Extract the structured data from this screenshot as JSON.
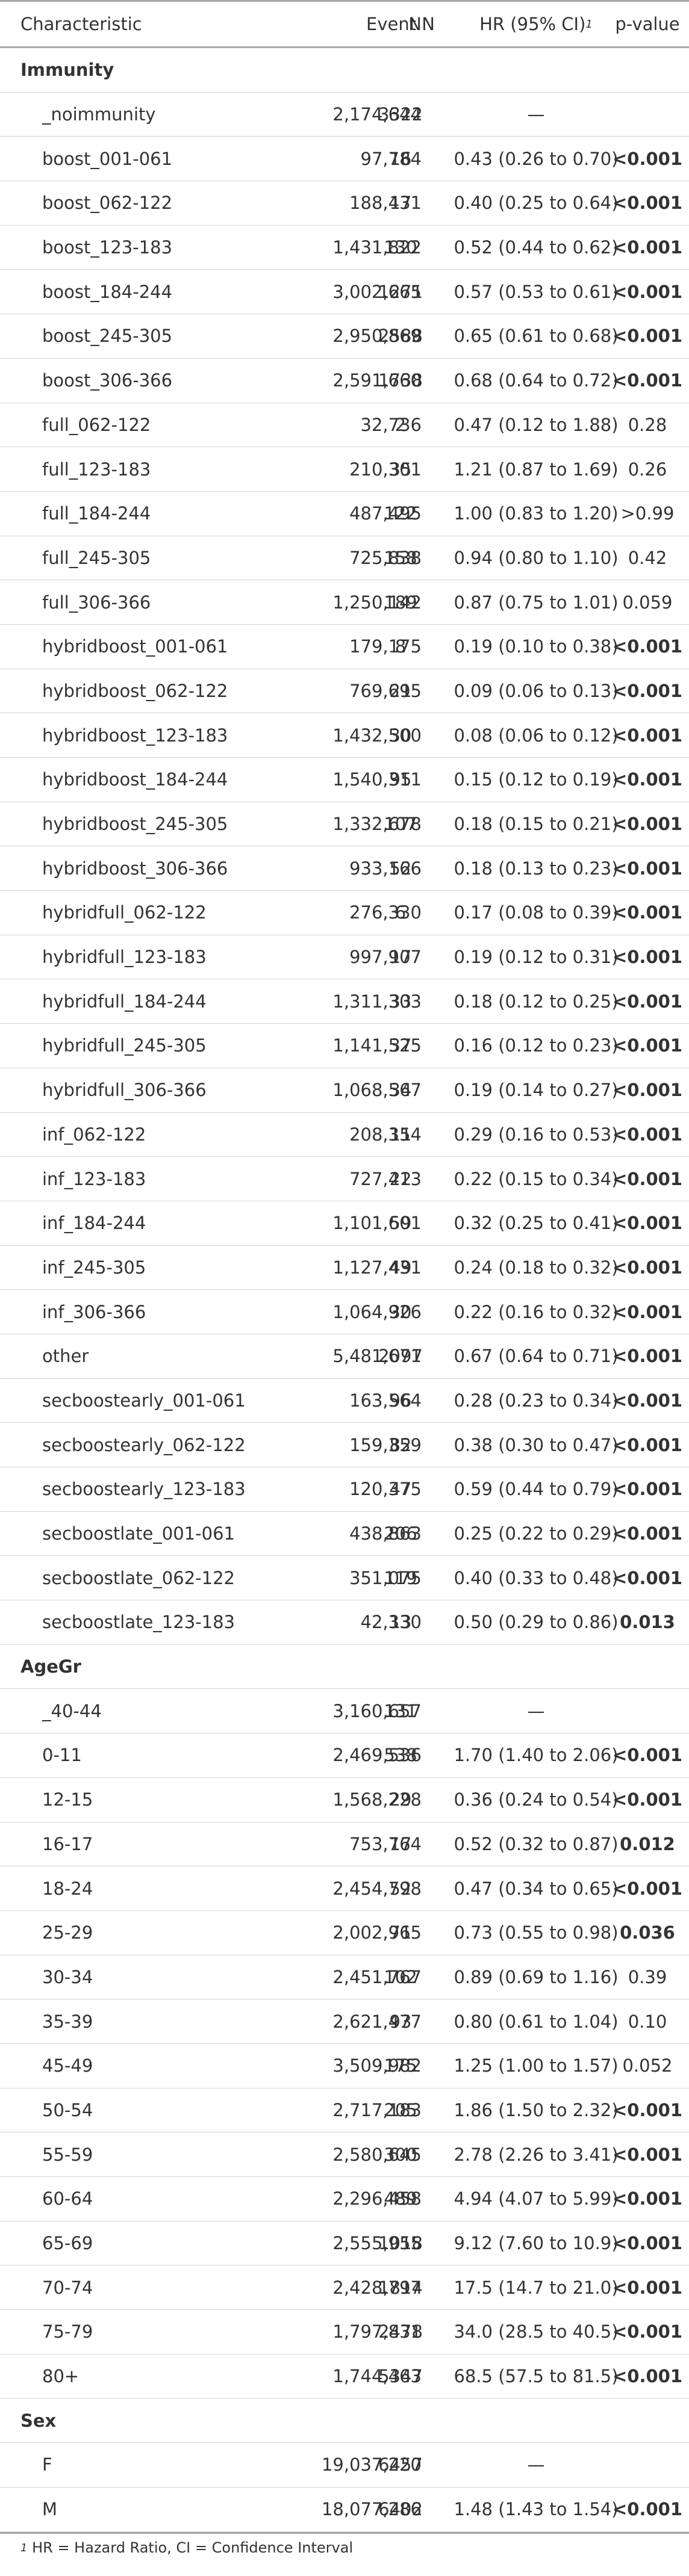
{
  "header": {
    "characteristic": "Characteristic",
    "n": "N",
    "event_n": "Event N",
    "hr": "HR (95% CI)",
    "hr_sup": "1",
    "pvalue": "p-value"
  },
  "groups": [
    {
      "label": "Immunity",
      "rows": [
        {
          "name": "_noimmunity",
          "n": "2,174,644",
          "events": "3322",
          "hr": "—",
          "p": "",
          "p_bold": false
        },
        {
          "name": "boost_001-061",
          "n": "97,784",
          "events": "16",
          "hr": "0.43 (0.26 to 0.70)",
          "p": "<0.001",
          "p_bold": true
        },
        {
          "name": "boost_062-122",
          "n": "188,431",
          "events": "17",
          "hr": "0.40 (0.25 to 0.64)",
          "p": "<0.001",
          "p_bold": true
        },
        {
          "name": "boost_123-183",
          "n": "1,431,822",
          "events": "130",
          "hr": "0.52 (0.44 to 0.62)",
          "p": "<0.001",
          "p_bold": true
        },
        {
          "name": "boost_184-244",
          "n": "3,002,665",
          "events": "1271",
          "hr": "0.57 (0.53 to 0.61)",
          "p": "<0.001",
          "p_bold": true
        },
        {
          "name": "boost_245-305",
          "n": "2,950,869",
          "events": "2588",
          "hr": "0.65 (0.61 to 0.68)",
          "p": "<0.001",
          "p_bold": true
        },
        {
          "name": "boost_306-366",
          "n": "2,591,660",
          "events": "1738",
          "hr": "0.68 (0.64 to 0.72)",
          "p": "<0.001",
          "p_bold": true
        },
        {
          "name": "full_062-122",
          "n": "32,736",
          "events": "2",
          "hr": "0.47 (0.12 to 1.88)",
          "p": "0.28",
          "p_bold": false
        },
        {
          "name": "full_123-183",
          "n": "210,301",
          "events": "35",
          "hr": "1.21 (0.87 to 1.69)",
          "p": "0.26",
          "p_bold": false
        },
        {
          "name": "full_184-244",
          "n": "487,495",
          "events": "122",
          "hr": "1.00 (0.83 to 1.20)",
          "p": ">0.99",
          "p_bold": false
        },
        {
          "name": "full_245-305",
          "n": "725,838",
          "events": "158",
          "hr": "0.94 (0.80 to 1.10)",
          "p": "0.42",
          "p_bold": false
        },
        {
          "name": "full_306-366",
          "n": "1,250,142",
          "events": "189",
          "hr": "0.87 (0.75 to 1.01)",
          "p": "0.059",
          "p_bold": false
        },
        {
          "name": "hybridboost_001-061",
          "n": "179,175",
          "events": "8",
          "hr": "0.19 (0.10 to 0.38)",
          "p": "<0.001",
          "p_bold": true
        },
        {
          "name": "hybridboost_062-122",
          "n": "769,695",
          "events": "21",
          "hr": "0.09 (0.06 to 0.13)",
          "p": "<0.001",
          "p_bold": true
        },
        {
          "name": "hybridboost_123-183",
          "n": "1,432,500",
          "events": "30",
          "hr": "0.08 (0.06 to 0.12)",
          "p": "<0.001",
          "p_bold": true
        },
        {
          "name": "hybridboost_184-244",
          "n": "1,540,311",
          "events": "95",
          "hr": "0.15 (0.12 to 0.19)",
          "p": "<0.001",
          "p_bold": true
        },
        {
          "name": "hybridboost_245-305",
          "n": "1,332,678",
          "events": "107",
          "hr": "0.18 (0.15 to 0.21)",
          "p": "<0.001",
          "p_bold": true
        },
        {
          "name": "hybridboost_306-366",
          "n": "933,166",
          "events": "52",
          "hr": "0.18 (0.13 to 0.23)",
          "p": "<0.001",
          "p_bold": true
        },
        {
          "name": "hybridfull_062-122",
          "n": "276,330",
          "events": "6",
          "hr": "0.17 (0.08 to 0.39)",
          "p": "<0.001",
          "p_bold": true
        },
        {
          "name": "hybridfull_123-183",
          "n": "997,907",
          "events": "17",
          "hr": "0.19 (0.12 to 0.31)",
          "p": "<0.001",
          "p_bold": true
        },
        {
          "name": "hybridfull_184-244",
          "n": "1,311,303",
          "events": "33",
          "hr": "0.18 (0.12 to 0.25)",
          "p": "<0.001",
          "p_bold": true
        },
        {
          "name": "hybridfull_245-305",
          "n": "1,141,525",
          "events": "37",
          "hr": "0.16 (0.12 to 0.23)",
          "p": "<0.001",
          "p_bold": true
        },
        {
          "name": "hybridfull_306-366",
          "n": "1,068,567",
          "events": "34",
          "hr": "0.19 (0.14 to 0.27)",
          "p": "<0.001",
          "p_bold": true
        },
        {
          "name": "inf_062-122",
          "n": "208,354",
          "events": "11",
          "hr": "0.29 (0.16 to 0.53)",
          "p": "<0.001",
          "p_bold": true
        },
        {
          "name": "inf_123-183",
          "n": "727,413",
          "events": "22",
          "hr": "0.22 (0.15 to 0.34)",
          "p": "<0.001",
          "p_bold": true
        },
        {
          "name": "inf_184-244",
          "n": "1,101,601",
          "events": "59",
          "hr": "0.32 (0.25 to 0.41)",
          "p": "<0.001",
          "p_bold": true
        },
        {
          "name": "inf_245-305",
          "n": "1,127,431",
          "events": "49",
          "hr": "0.24 (0.18 to 0.32)",
          "p": "<0.001",
          "p_bold": true
        },
        {
          "name": "inf_306-366",
          "n": "1,064,926",
          "events": "30",
          "hr": "0.22 (0.16 to 0.32)",
          "p": "<0.001",
          "p_bold": true
        },
        {
          "name": "other",
          "n": "5,481,671",
          "events": "2097",
          "hr": "0.67 (0.64 to 0.71)",
          "p": "<0.001",
          "p_bold": true
        },
        {
          "name": "secboostearly_001-061",
          "n": "163,564",
          "events": "96",
          "hr": "0.28 (0.23 to 0.34)",
          "p": "<0.001",
          "p_bold": true
        },
        {
          "name": "secboostearly_062-122",
          "n": "159,359",
          "events": "82",
          "hr": "0.38 (0.30 to 0.47)",
          "p": "<0.001",
          "p_bold": true
        },
        {
          "name": "secboostearly_123-183",
          "n": "120,375",
          "events": "47",
          "hr": "0.59 (0.44 to 0.79)",
          "p": "<0.001",
          "p_bold": true
        },
        {
          "name": "secboostlate_001-061",
          "n": "438,863",
          "events": "206",
          "hr": "0.25 (0.22 to 0.29)",
          "p": "<0.001",
          "p_bold": true
        },
        {
          "name": "secboostlate_062-122",
          "n": "351,075",
          "events": "119",
          "hr": "0.40 (0.33 to 0.48)",
          "p": "<0.001",
          "p_bold": true
        },
        {
          "name": "secboostlate_123-183",
          "n": "42,330",
          "events": "13",
          "hr": "0.50 (0.29 to 0.86)",
          "p": "0.013",
          "p_bold": true
        }
      ]
    },
    {
      "label": "AgeGr",
      "rows": [
        {
          "name": "_40-44",
          "n": "3,160,657",
          "events": "131",
          "hr": "—",
          "p": "",
          "p_bold": false
        },
        {
          "name": "0-11",
          "n": "2,469,536",
          "events": "538",
          "hr": "1.70 (1.40 to 2.06)",
          "p": "<0.001",
          "p_bold": true
        },
        {
          "name": "12-15",
          "n": "1,568,228",
          "events": "29",
          "hr": "0.36 (0.24 to 0.54)",
          "p": "<0.001",
          "p_bold": true
        },
        {
          "name": "16-17",
          "n": "753,764",
          "events": "17",
          "hr": "0.52 (0.32 to 0.87)",
          "p": "0.012",
          "p_bold": true
        },
        {
          "name": "18-24",
          "n": "2,454,798",
          "events": "52",
          "hr": "0.47 (0.34 to 0.65)",
          "p": "<0.001",
          "p_bold": true
        },
        {
          "name": "25-29",
          "n": "2,002,965",
          "events": "71",
          "hr": "0.73 (0.55 to 0.98)",
          "p": "0.036",
          "p_bold": true
        },
        {
          "name": "30-34",
          "n": "2,451,767",
          "events": "102",
          "hr": "0.89 (0.69 to 1.16)",
          "p": "0.39",
          "p_bold": false
        },
        {
          "name": "35-39",
          "n": "2,621,477",
          "events": "93",
          "hr": "0.80 (0.61 to 1.04)",
          "p": "0.10",
          "p_bold": false
        },
        {
          "name": "45-49",
          "n": "3,509,982",
          "events": "175",
          "hr": "1.25 (1.00 to 1.57)",
          "p": "0.052",
          "p_bold": false
        },
        {
          "name": "50-54",
          "n": "2,717,183",
          "events": "205",
          "hr": "1.86 (1.50 to 2.32)",
          "p": "<0.001",
          "p_bold": true
        },
        {
          "name": "55-59",
          "n": "2,580,645",
          "events": "300",
          "hr": "2.78 (2.26 to 3.41)",
          "p": "<0.001",
          "p_bold": true
        },
        {
          "name": "60-64",
          "n": "2,296,458",
          "events": "489",
          "hr": "4.94 (4.07 to 5.99)",
          "p": "<0.001",
          "p_bold": true
        },
        {
          "name": "65-69",
          "n": "2,555,955",
          "events": "1018",
          "hr": "9.12 (7.60 to 10.9)",
          "p": "<0.001",
          "p_bold": true
        },
        {
          "name": "70-74",
          "n": "2,428,797",
          "events": "1814",
          "hr": "17.5 (14.7 to 21.0)",
          "p": "<0.001",
          "p_bold": true
        },
        {
          "name": "75-79",
          "n": "1,797,831",
          "events": "2478",
          "hr": "34.0 (28.5 to 40.5)",
          "p": "<0.001",
          "p_bold": true
        },
        {
          "name": "80+",
          "n": "1,744,463",
          "events": "5347",
          "hr": "68.5 (57.5 to 81.5)",
          "p": "<0.001",
          "p_bold": true
        }
      ]
    },
    {
      "label": "Sex",
      "rows": [
        {
          "name": "F",
          "n": "19,037,220",
          "events": "6457",
          "hr": "—",
          "p": "",
          "p_bold": false
        },
        {
          "name": "M",
          "n": "18,077,286",
          "events": "6402",
          "hr": "1.48 (1.43 to 1.54)",
          "p": "<0.001",
          "p_bold": true
        }
      ]
    }
  ],
  "footnote": {
    "marker": "1",
    "text": "HR = Hazard Ratio, CI = Confidence Interval"
  }
}
